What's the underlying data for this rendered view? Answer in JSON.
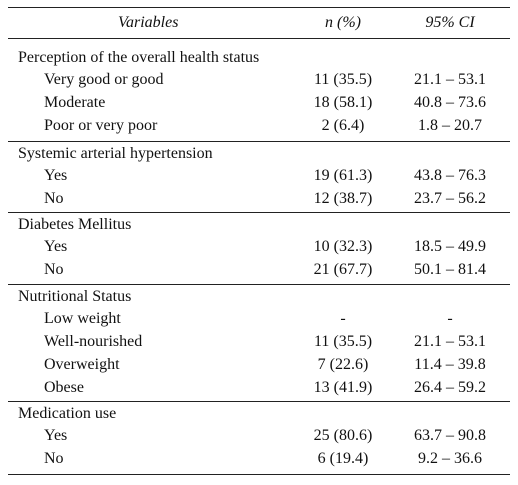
{
  "table": {
    "headers": {
      "variables": "Variables",
      "n": "n (%)",
      "ci": "95% CI"
    },
    "sections": [
      {
        "title": "Perception of the overall health status",
        "rows": [
          {
            "label": "Very good or good",
            "n": "11 (35.5)",
            "ci": "21.1 – 53.1"
          },
          {
            "label": "Moderate",
            "n": "18 (58.1)",
            "ci": "40.8 – 73.6"
          },
          {
            "label": "Poor or very poor",
            "n": "2 (6.4)",
            "ci": "1.8 – 20.7"
          }
        ]
      },
      {
        "title": "Systemic arterial hypertension",
        "rows": [
          {
            "label": "Yes",
            "n": "19 (61.3)",
            "ci": "43.8 – 76.3"
          },
          {
            "label": "No",
            "n": "12 (38.7)",
            "ci": "23.7 – 56.2"
          }
        ]
      },
      {
        "title": "Diabetes Mellitus",
        "rows": [
          {
            "label": "Yes",
            "n": "10 (32.3)",
            "ci": "18.5 – 49.9"
          },
          {
            "label": "No",
            "n": "21 (67.7)",
            "ci": "50.1 – 81.4"
          }
        ]
      },
      {
        "title": "Nutritional Status",
        "rows": [
          {
            "label": "Low weight",
            "n": "-",
            "ci": "-"
          },
          {
            "label": "Well-nourished",
            "n": "11 (35.5)",
            "ci": "21.1 – 53.1"
          },
          {
            "label": "Overweight",
            "n": "7 (22.6)",
            "ci": "11.4 – 39.8"
          },
          {
            "label": "Obese",
            "n": "13 (41.9)",
            "ci": "26.4 – 59.2"
          }
        ]
      },
      {
        "title": "Medication use",
        "rows": [
          {
            "label": "Yes",
            "n": "25 (80.6)",
            "ci": "63.7 – 90.8"
          },
          {
            "label": "No",
            "n": "6 (19.4)",
            "ci": "9.2 – 36.6"
          }
        ]
      }
    ]
  }
}
